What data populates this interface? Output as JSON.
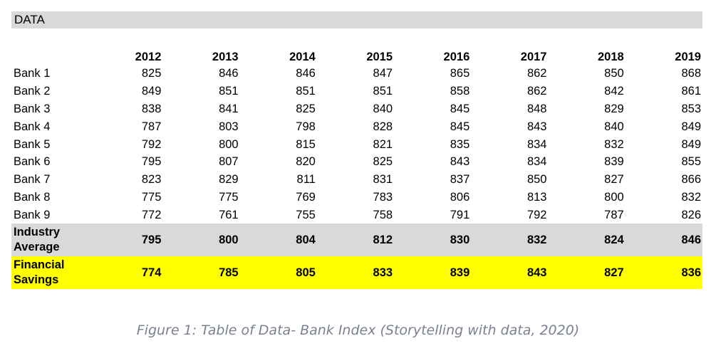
{
  "header": {
    "title": "DATA"
  },
  "table": {
    "years": [
      "2012",
      "2013",
      "2014",
      "2015",
      "2016",
      "2017",
      "2018",
      "2019"
    ],
    "rows": [
      {
        "label": "Bank 1",
        "values": [
          "825",
          "846",
          "846",
          "847",
          "865",
          "862",
          "850",
          "868"
        ]
      },
      {
        "label": "Bank 2",
        "values": [
          "849",
          "851",
          "851",
          "851",
          "858",
          "862",
          "842",
          "861"
        ]
      },
      {
        "label": "Bank 3",
        "values": [
          "838",
          "841",
          "825",
          "840",
          "845",
          "848",
          "829",
          "853"
        ]
      },
      {
        "label": "Bank 4",
        "values": [
          "787",
          "803",
          "798",
          "828",
          "845",
          "843",
          "840",
          "849"
        ]
      },
      {
        "label": "Bank 5",
        "values": [
          "792",
          "800",
          "815",
          "821",
          "835",
          "834",
          "832",
          "849"
        ]
      },
      {
        "label": "Bank 6",
        "values": [
          "795",
          "807",
          "820",
          "825",
          "843",
          "834",
          "839",
          "855"
        ]
      },
      {
        "label": "Bank 7",
        "values": [
          "823",
          "829",
          "811",
          "831",
          "837",
          "850",
          "827",
          "866"
        ]
      },
      {
        "label": "Bank 8",
        "values": [
          "775",
          "775",
          "769",
          "783",
          "806",
          "813",
          "800",
          "832"
        ]
      },
      {
        "label": "Bank 9",
        "values": [
          "772",
          "761",
          "755",
          "758",
          "791",
          "792",
          "787",
          "826"
        ]
      }
    ],
    "industry_average": {
      "label_line1": "Industry",
      "label_line2": "Average",
      "values": [
        "795",
        "800",
        "804",
        "812",
        "830",
        "832",
        "824",
        "846"
      ]
    },
    "financial_savings": {
      "label_line1": "Financial",
      "label_line2": "Savings",
      "values": [
        "774",
        "785",
        "805",
        "833",
        "839",
        "843",
        "827",
        "836"
      ]
    }
  },
  "caption": "Figure 1: Table of Data- Bank Index (Storytelling with data, 2020)",
  "colors": {
    "header_bg": "#d9d9d9",
    "industry_bg": "#d9d9d9",
    "financial_bg": "#ffff00",
    "caption_text": "#7a8191"
  }
}
